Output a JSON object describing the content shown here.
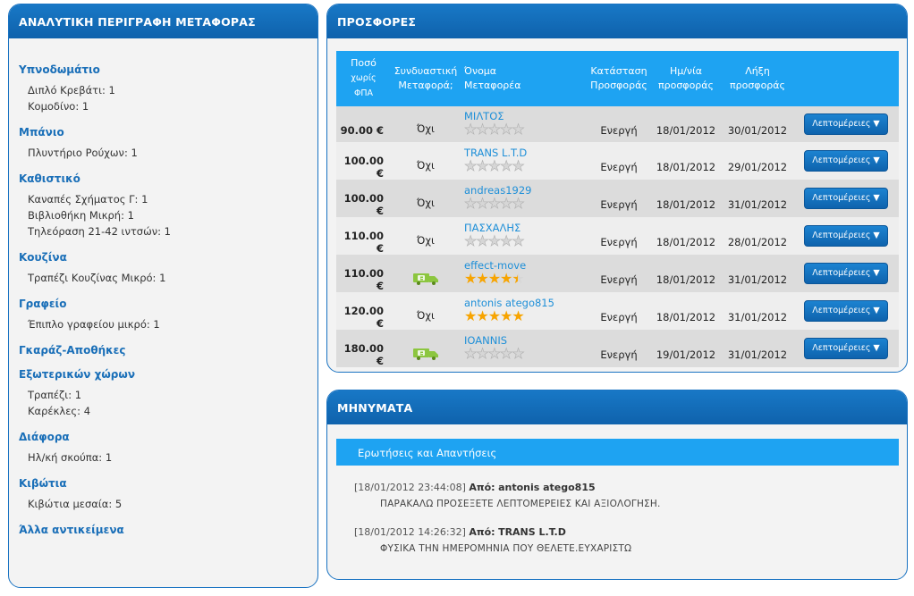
{
  "left_panel": {
    "title": "ΑΝΑΛΥΤΙΚΗ ΠΕΡΙΓΡΑΦΗ ΜΕΤΑΦΟΡΑΣ",
    "categories": [
      {
        "name": "Υπνοδωμάτιο",
        "items": [
          {
            "label": "Διπλό Κρεβάτι:",
            "qty": "1"
          },
          {
            "label": "Κομοδίνο:",
            "qty": "1"
          }
        ]
      },
      {
        "name": "Μπάνιο",
        "items": [
          {
            "label": "Πλυντήριο Ρούχων:",
            "qty": "1"
          }
        ]
      },
      {
        "name": "Καθιστικό",
        "items": [
          {
            "label": "Καναπές Σχήματος Γ:",
            "qty": "1"
          },
          {
            "label": "Βιβλιοθήκη Μικρή:",
            "qty": "1"
          },
          {
            "label": "Τηλεόραση 21-42 ιντσών:",
            "qty": "1"
          }
        ]
      },
      {
        "name": "Κουζίνα",
        "items": [
          {
            "label": "Τραπέζι Κουζίνας Μικρό:",
            "qty": "1"
          }
        ]
      },
      {
        "name": "Γραφείο",
        "items": [
          {
            "label": "Έπιπλο γραφείου μικρό:",
            "qty": "1"
          }
        ]
      },
      {
        "name": "Γκαράζ-Αποθήκες",
        "items": []
      },
      {
        "name": "Εξωτερικών χώρων",
        "items": [
          {
            "label": "Τραπέζι:",
            "qty": "1"
          },
          {
            "label": "Καρέκλες:",
            "qty": "4"
          }
        ]
      },
      {
        "name": "Διάφορα",
        "items": [
          {
            "label": "Ηλ/κή σκούπα:",
            "qty": "1"
          }
        ]
      },
      {
        "name": "Κιβώτια",
        "items": [
          {
            "label": "Κιβώτια μεσαία:",
            "qty": "5"
          }
        ]
      },
      {
        "name": "Άλλα αντικείμενα",
        "items": []
      }
    ]
  },
  "offers_panel": {
    "title": "ΠΡΟΣΦΟΡΕΣ",
    "headers": {
      "price_l1": "Ποσό",
      "price_l2": "χωρίς",
      "price_l3": "ΦΠΑ",
      "combined_l1": "Συνδυαστική",
      "combined_l2": "Μεταφορά;",
      "carrier_l1": "Όνομα",
      "carrier_l2": "Μεταφορέα",
      "status_l1": "Κατάσταση",
      "status_l2": "Προσφοράς",
      "date_l1": "Ημ/νία",
      "date_l2": "προσφοράς",
      "expiry_l1": "Λήξη",
      "expiry_l2": "προσφοράς"
    },
    "rows": [
      {
        "price": "90.00 €",
        "combined": "Όχι",
        "combined_icon": false,
        "carrier": "ΜΙΛΤΟΣ",
        "rating": 0,
        "status": "Ενεργή",
        "date": "18/01/2012",
        "expiry": "30/01/2012",
        "button": "Λεπτομέρειες ▼"
      },
      {
        "price": "100.00 €",
        "combined": "Όχι",
        "combined_icon": false,
        "carrier": "TRANS L.T.D",
        "rating": 0,
        "status": "Ενεργή",
        "date": "18/01/2012",
        "expiry": "29/01/2012",
        "button": "Λεπτομέρειες ▼"
      },
      {
        "price": "100.00 €",
        "combined": "Όχι",
        "combined_icon": false,
        "carrier": "andreas1929",
        "rating": 0,
        "status": "Ενεργή",
        "date": "18/01/2012",
        "expiry": "31/01/2012",
        "button": "Λεπτομέρειες ▼"
      },
      {
        "price": "110.00 €",
        "combined": "Όχι",
        "combined_icon": false,
        "carrier": "ΠΑΣΧΑΛΗΣ",
        "rating": 0,
        "status": "Ενεργή",
        "date": "18/01/2012",
        "expiry": "28/01/2012",
        "button": "Λεπτομέρειες ▼"
      },
      {
        "price": "110.00 €",
        "combined": "",
        "combined_icon": true,
        "carrier": "effect-move",
        "rating": 4.5,
        "status": "Ενεργή",
        "date": "18/01/2012",
        "expiry": "31/01/2012",
        "button": "Λεπτομέρειες ▼"
      },
      {
        "price": "120.00 €",
        "combined": "Όχι",
        "combined_icon": false,
        "carrier": "antonis atego815",
        "rating": 5,
        "status": "Ενεργή",
        "date": "18/01/2012",
        "expiry": "31/01/2012",
        "button": "Λεπτομέρειες ▼"
      },
      {
        "price": "180.00 €",
        "combined": "",
        "combined_icon": true,
        "carrier": "IOANNIS",
        "rating": 0,
        "status": "Ενεργή",
        "date": "19/01/2012",
        "expiry": "31/01/2012",
        "button": "Λεπτομέρειες ▼"
      }
    ]
  },
  "messages_panel": {
    "title": "ΜΗΝΥΜΑΤΑ",
    "qa_label": "Ερωτήσεις και Απαντήσεις",
    "messages": [
      {
        "timestamp": "[18/01/2012 23:44:08]",
        "from_label": "Από:",
        "from": "antonis atego815",
        "body": "ΠΑΡΑΚΑΛΩ ΠΡΟΣΕΞΕΤΕ ΛΕΠΤΟΜΕΡΕΙΕΣ ΚΑΙ ΑΞΙΟΛΟΓΗΣΗ."
      },
      {
        "timestamp": "[18/01/2012 14:26:32]",
        "from_label": "Από:",
        "from": "TRANS L.T.D",
        "body": "ΦΥΣΙΚΑ ΤΗΝ ΗΜΕΡΟΜΗΝΙΑ ΠΟΥ ΘΕΛΕΤΕ.ΕΥΧΑΡΙΣΤΩ"
      }
    ]
  },
  "colors": {
    "accent": "#1a73c2",
    "header_bar": "#1ea3f2",
    "link": "#1e8fd8",
    "star": "#f7a400",
    "truck": "#8cc63f"
  }
}
